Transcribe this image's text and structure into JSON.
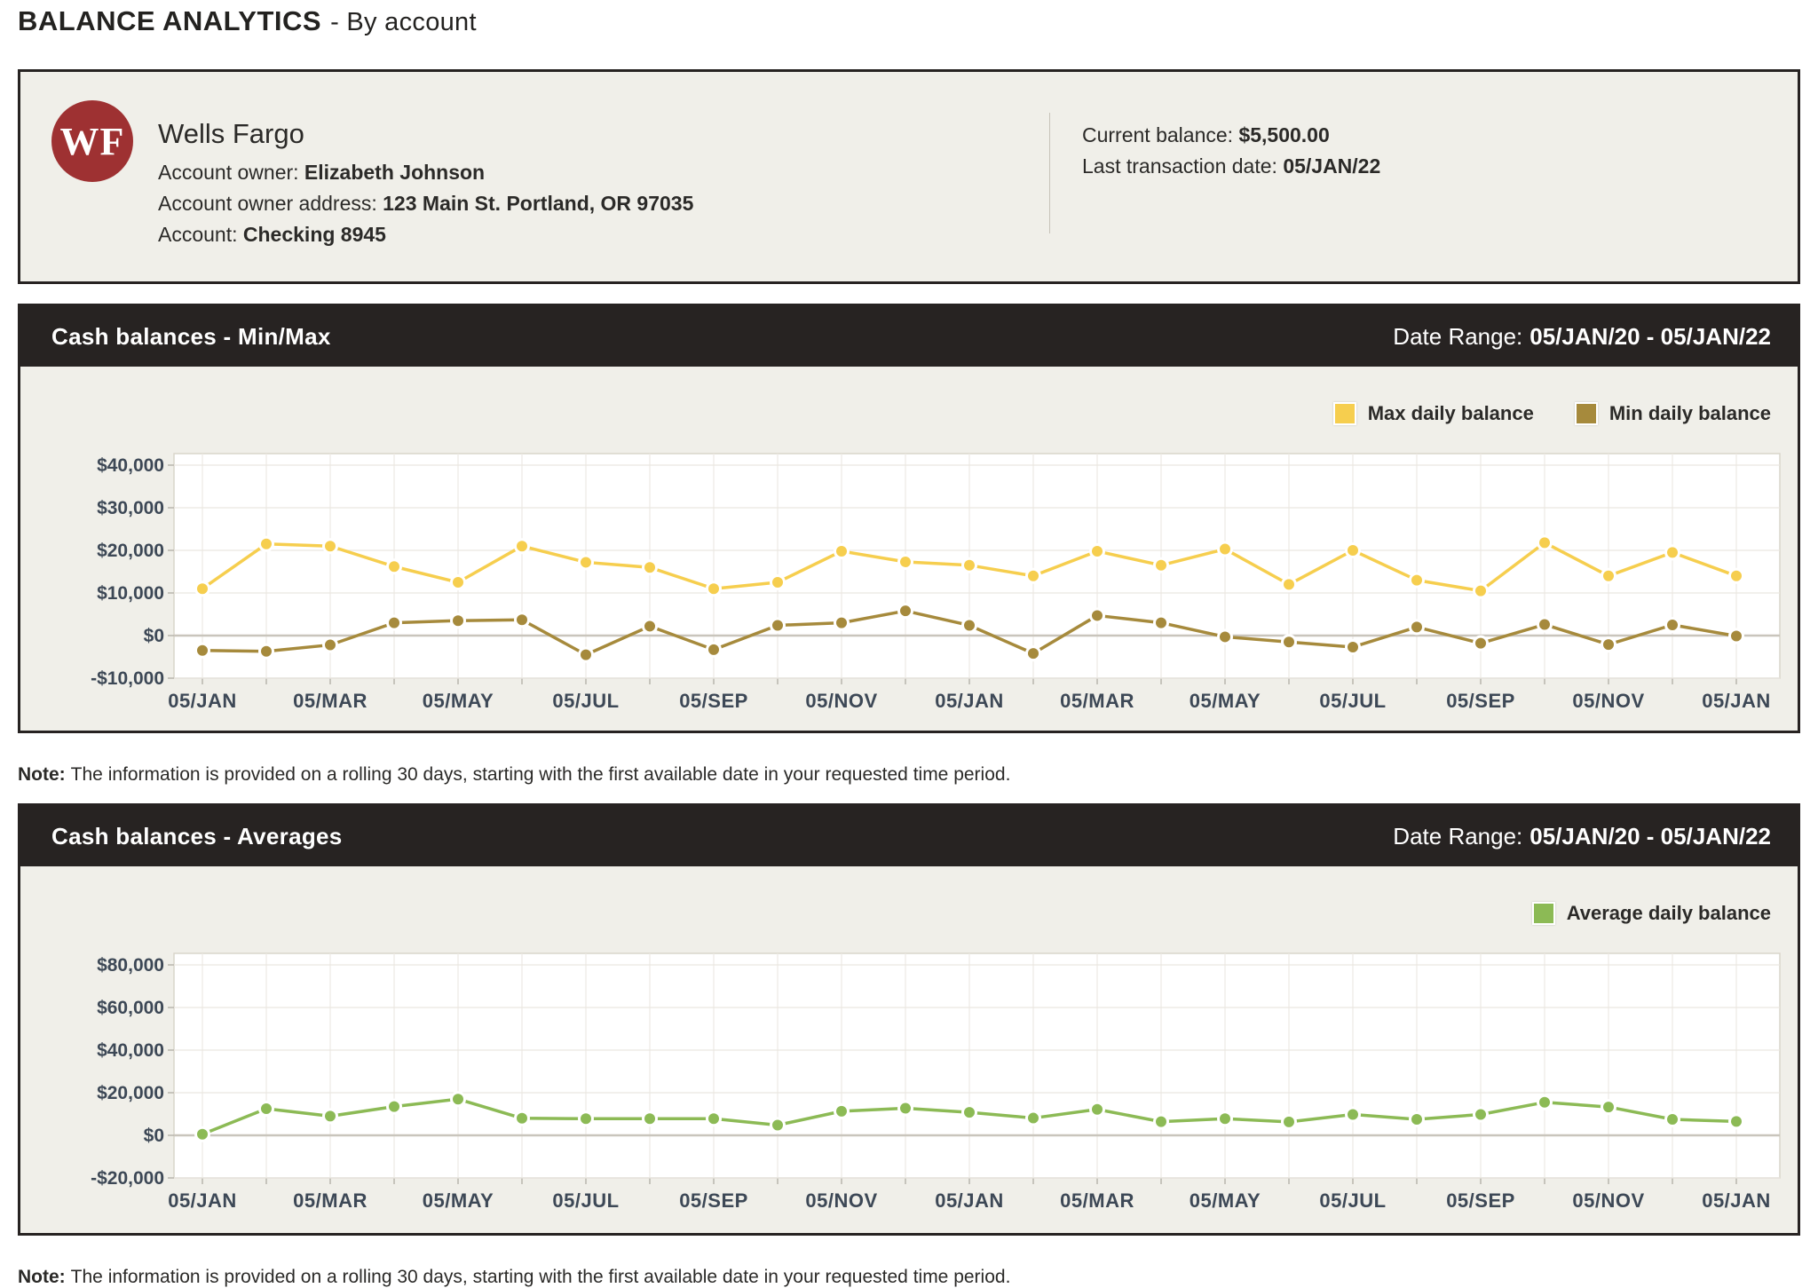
{
  "page": {
    "title_bold": "BALANCE ANALYTICS",
    "title_rest": "- By account"
  },
  "account_card": {
    "logo_initials": "WF",
    "bank_name": "Wells Fargo",
    "owner_label": "Account owner:",
    "owner_value": "Elizabeth Johnson",
    "address_label": "Account owner address:",
    "address_value": "123 Main St. Portland, OR 97035",
    "account_label": "Account:",
    "account_value": "Checking 8945",
    "balance_label": "Current balance:",
    "balance_value": "$5,500.00",
    "last_txn_label": "Last transaction date:",
    "last_txn_value": "05/JAN/22"
  },
  "colors": {
    "dark": "#272322",
    "card_bg": "#f0efe9",
    "max_series": "#f6ce4e",
    "min_series": "#a68a3c",
    "avg_series": "#8cba55",
    "logo_red": "#9e3132",
    "axis_text": "#3d4856"
  },
  "chart_data": [
    {
      "type": "line",
      "title": "Cash balances - Min/Max",
      "date_range_label": "Date Range:",
      "date_range_value": "05/JAN/20 - 05/JAN/22",
      "note_label": "Note:",
      "note_text": "The information is provided on a rolling 30 days, starting with the first available date in your requested time period.",
      "grid": true,
      "legend_position": "top-right",
      "ylim": [
        -10000,
        42700
      ],
      "y_ticks": [
        40000,
        30000,
        20000,
        10000,
        0,
        -10000
      ],
      "y_tick_labels": [
        "$40,000",
        "$30,000",
        "$20,000",
        "$10,000",
        "$0",
        "-$10,000"
      ],
      "x_tick_labels": [
        "05/JAN",
        "05/MAR",
        "05/MAY",
        "05/JUL",
        "05/SEP",
        "05/NOV",
        "05/JAN",
        "05/MAR",
        "05/MAY",
        "05/JUL",
        "05/SEP",
        "05/NOV",
        "05/JAN"
      ],
      "x_dates": [
        "05/JAN/20",
        "05/FEB/20",
        "05/MAR/20",
        "05/APR/20",
        "05/MAY/20",
        "05/JUN/20",
        "05/JUL/20",
        "05/AUG/20",
        "05/SEP/20",
        "05/OCT/20",
        "05/NOV/20",
        "05/DEC/20",
        "05/JAN/21",
        "05/FEB/21",
        "05/MAR/21",
        "05/APR/21",
        "05/MAY/21",
        "05/JUN/21",
        "05/JUL/21",
        "05/AUG/21",
        "05/SEP/21",
        "05/OCT/21",
        "05/NOV/21",
        "05/DEC/21",
        "05/JAN/22"
      ],
      "series": [
        {
          "name": "Max daily balance",
          "color": "#f6ce4e",
          "values": [
            11000,
            21500,
            21000,
            16200,
            12500,
            21000,
            17200,
            16000,
            11000,
            12500,
            19800,
            17300,
            16500,
            14000,
            19800,
            16500,
            20300,
            12000,
            20000,
            13000,
            10500,
            21800,
            14000,
            19500,
            14000
          ]
        },
        {
          "name": "Min daily balance",
          "color": "#a68a3c",
          "values": [
            -3500,
            -3700,
            -2200,
            3000,
            3500,
            3700,
            -4500,
            2200,
            -3300,
            2400,
            3000,
            5800,
            2400,
            -4200,
            4700,
            3000,
            -300,
            -1500,
            -2700,
            2000,
            -1800,
            2600,
            -2100,
            2500,
            -100
          ]
        }
      ]
    },
    {
      "type": "line",
      "title": "Cash balances - Averages",
      "date_range_label": "Date Range:",
      "date_range_value": "05/JAN/20 - 05/JAN/22",
      "note_label": "Note:",
      "note_text": "The information is provided on a rolling 30 days, starting with the first available date in your requested time period.",
      "grid": true,
      "legend_position": "top-right",
      "ylim": [
        -20000,
        85400
      ],
      "y_ticks": [
        80000,
        60000,
        40000,
        20000,
        0,
        -20000
      ],
      "y_tick_labels": [
        "$80,000",
        "$60,000",
        "$40,000",
        "$20,000",
        "$0",
        "-$20,000"
      ],
      "x_tick_labels": [
        "05/JAN",
        "05/MAR",
        "05/MAY",
        "05/JUL",
        "05/SEP",
        "05/NOV",
        "05/JAN",
        "05/MAR",
        "05/MAY",
        "05/JUL",
        "05/SEP",
        "05/NOV",
        "05/JAN"
      ],
      "x_dates": [
        "05/JAN/20",
        "05/FEB/20",
        "05/MAR/20",
        "05/APR/20",
        "05/MAY/20",
        "05/JUN/20",
        "05/JUL/20",
        "05/AUG/20",
        "05/SEP/20",
        "05/OCT/20",
        "05/NOV/20",
        "05/DEC/20",
        "05/JAN/21",
        "05/FEB/21",
        "05/MAR/21",
        "05/APR/21",
        "05/MAY/21",
        "05/JUN/21",
        "05/JUL/21",
        "05/AUG/21",
        "05/SEP/21",
        "05/OCT/21",
        "05/NOV/21",
        "05/DEC/21",
        "05/JAN/22"
      ],
      "series": [
        {
          "name": "Average daily balance",
          "color": "#8cba55",
          "values": [
            500,
            12500,
            9000,
            13500,
            17000,
            8000,
            7800,
            7800,
            7800,
            4800,
            11300,
            12700,
            10800,
            8100,
            12200,
            6400,
            7800,
            6300,
            9800,
            7500,
            9800,
            15500,
            13300,
            7500,
            6500
          ]
        }
      ]
    }
  ]
}
